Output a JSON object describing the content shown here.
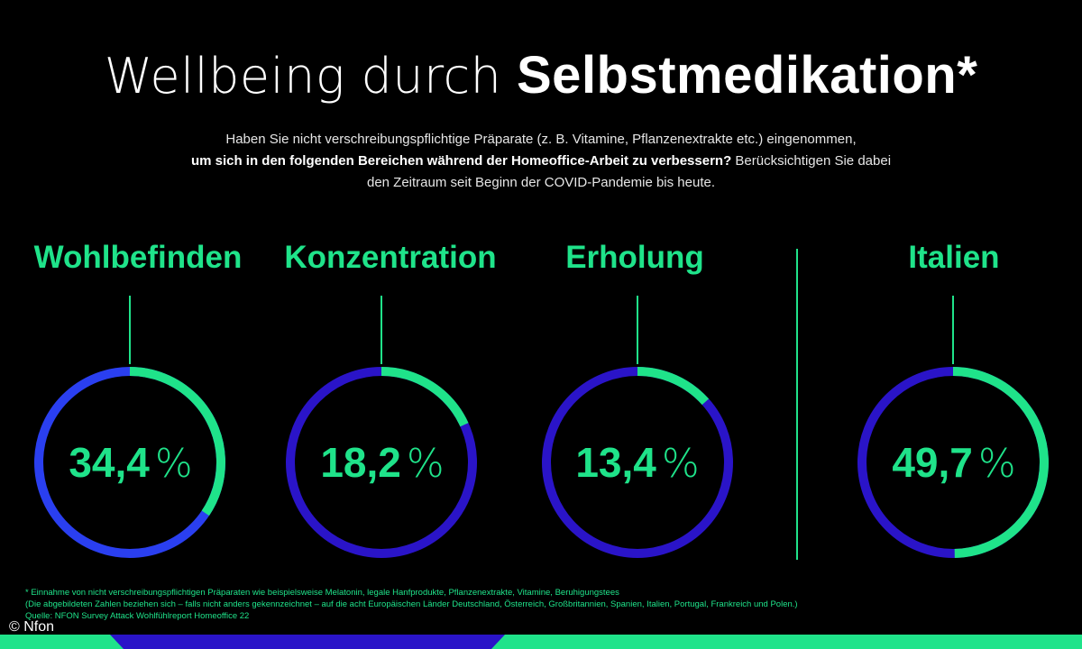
{
  "title": {
    "light": "Wellbeing durch",
    "bold": "Selbstmedikation*"
  },
  "intro": {
    "line1": "Haben Sie nicht verschreibungspflichtige Präparate (z. B. Vitamine, Pflanzenextrakte etc.) eingenommen,",
    "line2_bold": "um sich in den folgenden Bereichen während der Homeoffice-Arbeit zu verbessern?",
    "line2_rest": " Berücksichtigen Sie dabei",
    "line3": "den Zeitraum seit Beginn der COVID-Pandemie bis heute."
  },
  "chart_data": {
    "type": "pie",
    "unit": "%",
    "items": [
      {
        "label": "Wohlbefinden",
        "value": 34.4,
        "value_text": "34,4"
      },
      {
        "label": "Konzentration",
        "value": 18.2,
        "value_text": "18,2"
      },
      {
        "label": "Erholung",
        "value": 13.4,
        "value_text": "13,4"
      },
      {
        "label": "Italien",
        "value": 49.7,
        "value_text": "49,7"
      }
    ]
  },
  "colors": {
    "accent": "#1fe38a",
    "ring_primary": "#2a3ff0",
    "ring_secondary": "#2a14c8",
    "background": "#000000"
  },
  "footnotes": {
    "line1": "* Einnahme von nicht verschreibungspflichtigen Präparaten wie beispielsweise Melatonin, legale Hanfprodukte, Pflanzenextrakte, Vitamine, Beruhigungstees",
    "line2": "(Die abgebildeten Zahlen beziehen sich – falls nicht anders gekennzeichnet – auf die acht Europäischen Länder Deutschland, Österreich, Großbritannien, Spanien, Italien, Portugal, Frankreich und Polen.)",
    "line3": "Quelle: NFON Survey Attack Wohlfühlreport Homeoffice 22"
  },
  "copyright": "© Nfon"
}
